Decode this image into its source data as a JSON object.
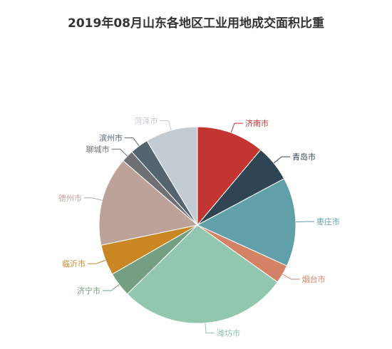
{
  "chart_data": {
    "type": "pie",
    "title": "2019年08月山东各地区工业用地成交面积比重",
    "slices": [
      {
        "name": "济南市",
        "value": 11.0,
        "color": "#c23531"
      },
      {
        "name": "青岛市",
        "value": 6.0,
        "color": "#2f4554"
      },
      {
        "name": "枣庄市",
        "value": 14.5,
        "color": "#61a0a8"
      },
      {
        "name": "烟台市",
        "value": 3.0,
        "color": "#d48265"
      },
      {
        "name": "潍坊市",
        "value": 27.5,
        "color": "#91c7ae"
      },
      {
        "name": "济宁市",
        "value": 4.0,
        "color": "#749f83"
      },
      {
        "name": "临沂市",
        "value": 5.0,
        "color": "#ca8622"
      },
      {
        "name": "德州市",
        "value": 14.5,
        "color": "#bda29a"
      },
      {
        "name": "聊城市",
        "value": 2.0,
        "color": "#6e7074"
      },
      {
        "name": "滨州市",
        "value": 3.0,
        "color": "#546570"
      },
      {
        "name": "菏泽市",
        "value": 8.5,
        "color": "#c4ccd3"
      }
    ]
  }
}
